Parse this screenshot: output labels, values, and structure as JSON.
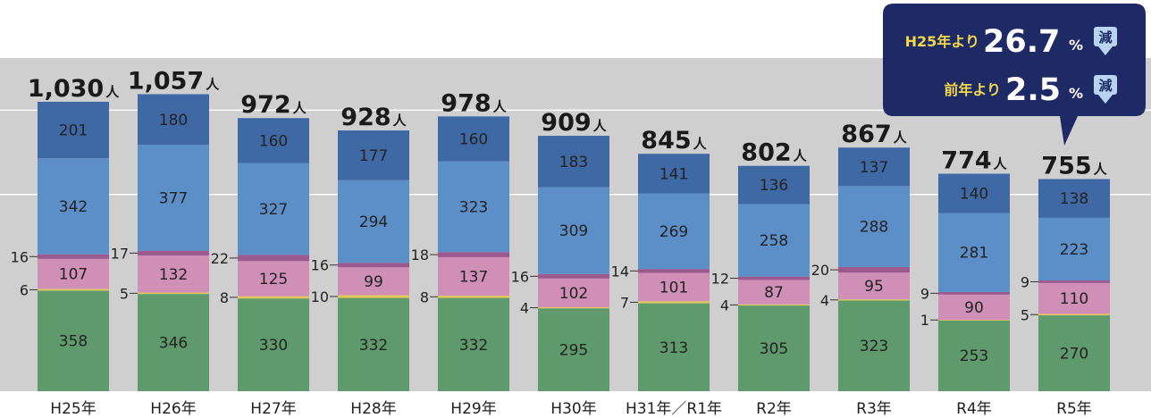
{
  "chart_data": {
    "type": "bar",
    "stacked": true,
    "categories": [
      "H25年",
      "H26年",
      "H27年",
      "H28年",
      "H29年",
      "H30年",
      "H31年／R1年",
      "R2年",
      "R3年",
      "R4年",
      "R5年"
    ],
    "totals": [
      "1,030",
      "1,057",
      "972",
      "928",
      "978",
      "909",
      "845",
      "802",
      "867",
      "774",
      "755"
    ],
    "total_unit": "人",
    "series": [
      {
        "key": "green",
        "values": [
          358,
          346,
          330,
          332,
          332,
          295,
          313,
          305,
          323,
          253,
          270
        ],
        "color": "#5e9a6b",
        "label_position": "inside"
      },
      {
        "key": "yellow",
        "values": [
          6,
          5,
          8,
          10,
          8,
          4,
          7,
          4,
          4,
          1,
          5
        ],
        "color": "#e3c75c",
        "label_position": "left"
      },
      {
        "key": "pink",
        "values": [
          107,
          132,
          125,
          99,
          137,
          102,
          101,
          87,
          95,
          90,
          110
        ],
        "color": "#cf8fb6",
        "label_position": "inside"
      },
      {
        "key": "purple",
        "values": [
          16,
          17,
          22,
          16,
          18,
          16,
          14,
          12,
          20,
          9,
          9
        ],
        "color": "#9a5a8e",
        "label_position": "left"
      },
      {
        "key": "blue",
        "values": [
          342,
          377,
          327,
          294,
          323,
          309,
          269,
          258,
          288,
          281,
          223
        ],
        "color": "#5c8fc7",
        "label_position": "inside"
      },
      {
        "key": "navy",
        "values": [
          201,
          180,
          160,
          177,
          160,
          183,
          141,
          136,
          137,
          140,
          138
        ],
        "color": "#3f69a4",
        "label_position": "inside"
      }
    ],
    "ylim": [
      0,
      1150
    ],
    "gridlines": [
      700,
      1000
    ],
    "background_color": "#cfcfcf",
    "grid_color": "#ffffff"
  },
  "callout": {
    "line1_prefix": "H25年より",
    "line1_value": "26.7",
    "line1_unit": "%",
    "line2_prefix": "前年より",
    "line2_value": "2.5",
    "line2_unit": "%",
    "badge_text": "減",
    "background_color": "#1e2a66",
    "prefix_color": "#f2d84a"
  }
}
